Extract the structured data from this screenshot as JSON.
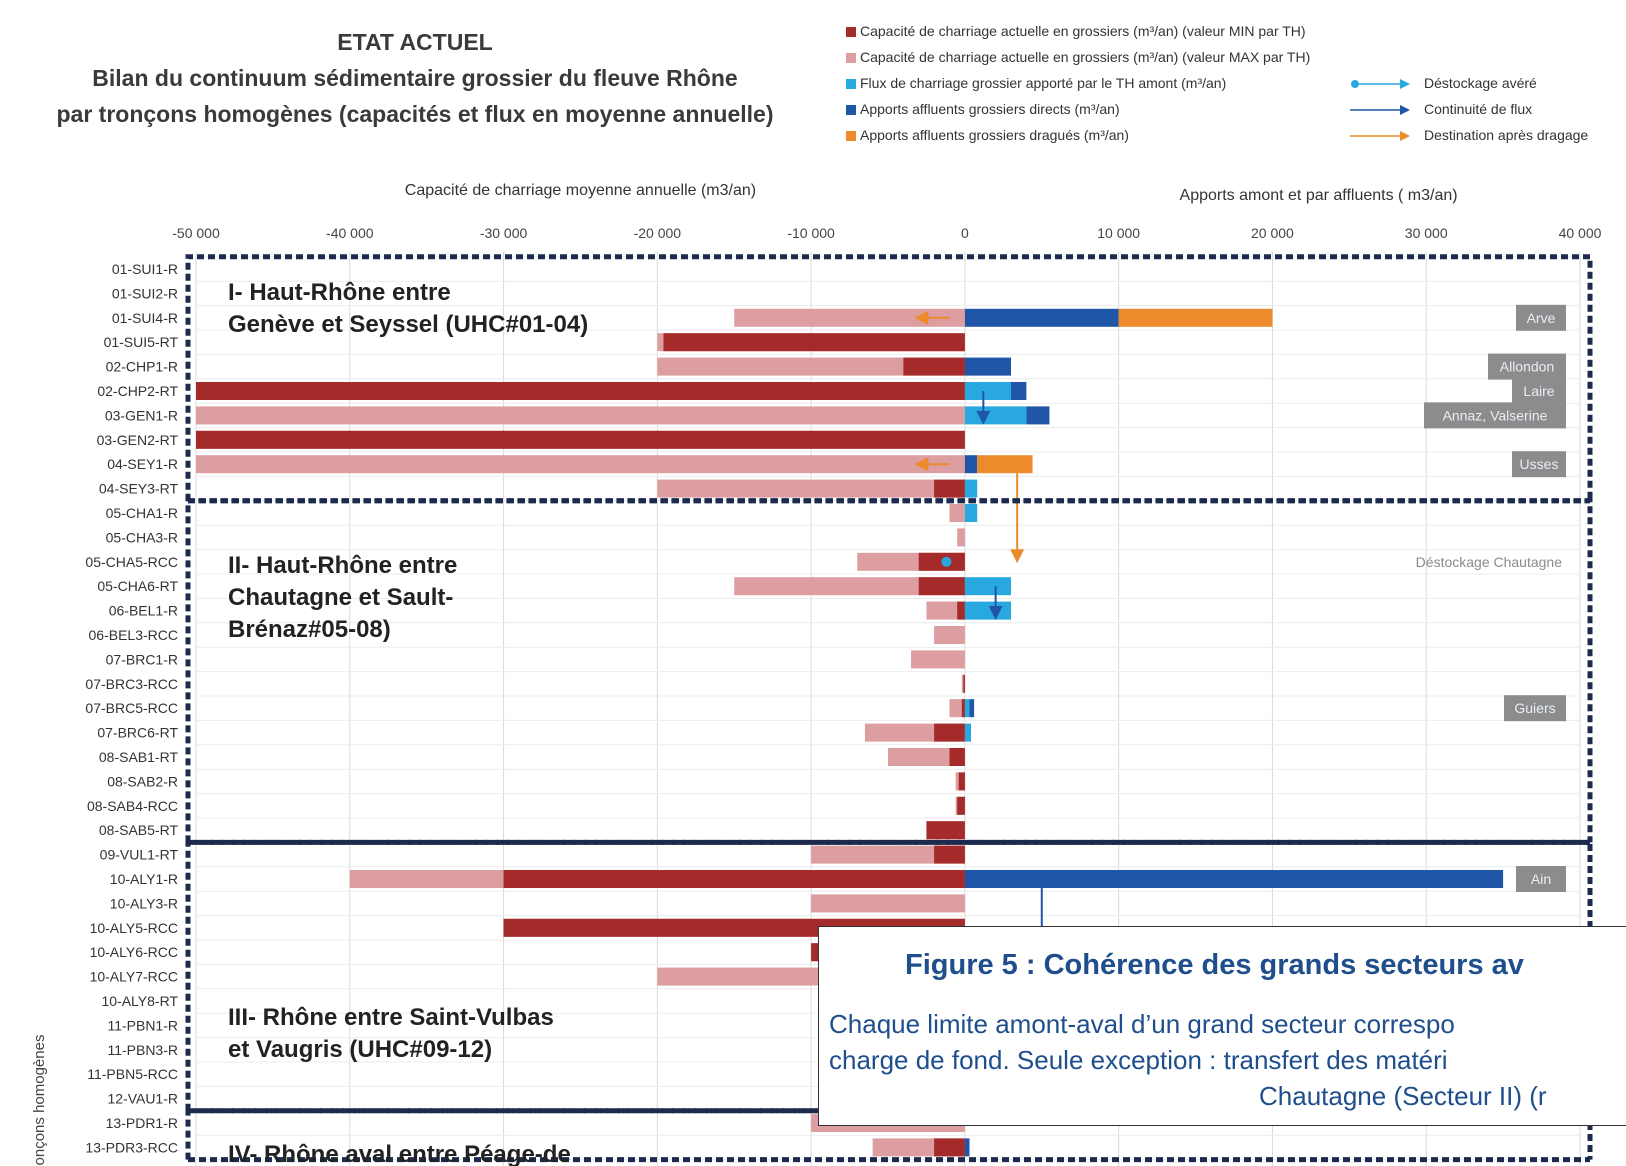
{
  "title": {
    "line0": "ETAT ACTUEL",
    "line1": "Bilan du continuum sédimentaire grossier du fleuve Rhône",
    "line2": "par tronçons homogènes (capacités et flux en moyenne annuelle)"
  },
  "legend": {
    "series": [
      {
        "label": "Capacité de charriage actuelle en grossiers (m³/an) (valeur MIN par TH)",
        "color": "#a52a2a"
      },
      {
        "label": "Capacité de charriage actuelle en grossiers (m³/an) (valeur MAX par TH)",
        "color": "#dc9ea0"
      },
      {
        "label": "Flux de charriage grossier apporté par le TH amont (m³/an)",
        "color": "#29a8e0"
      },
      {
        "label": "Apports affluents grossiers directs (m³/an)",
        "color": "#1f56a8"
      },
      {
        "label": "Apports affluents grossiers dragués (m³/an)",
        "color": "#ed8a2c"
      }
    ],
    "arrows": [
      {
        "label": "Déstockage avéré",
        "color": "#29a8e0"
      },
      {
        "label": "Continuité de flux",
        "color": "#1f56a8"
      },
      {
        "label": "Destination après dragage",
        "color": "#ed8a2c"
      }
    ]
  },
  "chart_data": {
    "type": "bar",
    "orientation": "horizontal",
    "x_label_left": "Capacité de charriage moyenne annuelle (m3/an)",
    "x_label_right": "Apports amont et par affluents ( m3/an)",
    "y_label": "onçons homogènes",
    "xlim": [
      -50000,
      40000
    ],
    "x_ticks": [
      -50000,
      -40000,
      -30000,
      -20000,
      -10000,
      0,
      10000,
      20000,
      30000,
      40000
    ],
    "x_tick_labels": [
      "-50 000",
      "-40 000",
      "-30 000",
      "-20 000",
      "-10 000",
      "0",
      "10 000",
      "20 000",
      "30 000",
      "40 000"
    ],
    "categories": [
      "01-SUI1-R",
      "01-SUI2-R",
      "01-SUI4-R",
      "01-SUI5-RT",
      "02-CHP1-R",
      "02-CHP2-RT",
      "03-GEN1-R",
      "03-GEN2-RT",
      "04-SEY1-R",
      "04-SEY3-RT",
      "05-CHA1-R",
      "05-CHA3-R",
      "05-CHA5-RCC",
      "05-CHA6-RT",
      "06-BEL1-R",
      "06-BEL3-RCC",
      "07-BRC1-R",
      "07-BRC3-RCC",
      "07-BRC5-RCC",
      "07-BRC6-RT",
      "08-SAB1-RT",
      "08-SAB2-R",
      "08-SAB4-RCC",
      "08-SAB5-RT",
      "09-VUL1-RT",
      "10-ALY1-R",
      "10-ALY3-R",
      "10-ALY5-RCC",
      "10-ALY6-RCC",
      "10-ALY7-RCC",
      "10-ALY8-RT",
      "11-PBN1-R",
      "11-PBN3-R",
      "11-PBN5-RCC",
      "12-VAU1-R",
      "13-PDR1-R",
      "13-PDR3-RCC"
    ],
    "series": [
      {
        "name": "Capacité de charriage actuelle en grossiers (m³/an) (valeur MAX par TH)",
        "values": [
          0,
          0,
          -15000,
          -20000,
          -20000,
          -50000,
          -50000,
          -50000,
          -50000,
          -20000,
          -1000,
          -500,
          -7000,
          -15000,
          -2500,
          -2000,
          -3500,
          -200,
          -1000,
          -6500,
          -5000,
          -600,
          -600,
          -2500,
          -10000,
          -40000,
          -10000,
          -30000,
          -10000,
          -20000,
          0,
          0,
          0,
          0,
          0,
          -10000,
          -6000
        ]
      },
      {
        "name": "Capacité de charriage actuelle en grossiers (m³/an) (valeur MIN par TH)",
        "values": [
          0,
          0,
          0,
          -19600,
          -4000,
          -50000,
          0,
          -50000,
          0,
          -2000,
          0,
          0,
          -3000,
          -3000,
          -500,
          0,
          0,
          -100,
          -200,
          -2000,
          -1000,
          -400,
          -500,
          -2500,
          -2000,
          -30000,
          0,
          -30000,
          -10000,
          0,
          0,
          0,
          0,
          0,
          0,
          0,
          -2000
        ]
      },
      {
        "name": "Flux de charriage grossier apporté par le TH amont (m³/an)",
        "values": [
          0,
          0,
          0,
          0,
          0,
          3000,
          4000,
          0,
          0,
          800,
          800,
          0,
          0,
          3000,
          3000,
          0,
          0,
          0,
          300,
          400,
          0,
          0,
          0,
          0,
          0,
          0,
          0,
          0,
          0,
          0,
          0,
          0,
          0,
          0,
          0,
          0,
          0
        ]
      },
      {
        "name": "Apports affluents grossiers directs (m³/an)",
        "values": [
          0,
          0,
          10000,
          0,
          3000,
          1000,
          1500,
          0,
          800,
          0,
          0,
          0,
          0,
          0,
          0,
          0,
          0,
          0,
          300,
          0,
          0,
          0,
          0,
          0,
          0,
          35000,
          0,
          0,
          0,
          0,
          0,
          0,
          0,
          0,
          0,
          0,
          300
        ]
      },
      {
        "name": "Apports affluents grossiers dragués (m³/an)",
        "values": [
          0,
          0,
          10000,
          0,
          0,
          0,
          0,
          0,
          3600,
          0,
          0,
          0,
          0,
          0,
          0,
          0,
          0,
          0,
          0,
          0,
          0,
          0,
          0,
          0,
          0,
          0,
          0,
          0,
          0,
          0,
          0,
          0,
          0,
          0,
          0,
          0,
          0
        ]
      }
    ],
    "tributary_labels": [
      {
        "text": "Arve",
        "row": "01-SUI4-R"
      },
      {
        "text": "Allondon",
        "row": "02-CHP1-R"
      },
      {
        "text": "Laire",
        "row": "02-CHP2-RT"
      },
      {
        "text": "Annaz, Valserine",
        "row": "03-GEN1-R"
      },
      {
        "text": "Usses",
        "row": "04-SEY1-R"
      },
      {
        "text": "Guiers",
        "row": "07-BRC5-RCC"
      },
      {
        "text": "Ain",
        "row": "10-ALY1-R"
      }
    ],
    "annotations": [
      {
        "text": "Déstockage Chautagne",
        "row": "05-CHA5-RCC"
      }
    ],
    "sectors": [
      {
        "label_lines": [
          "I- Haut-Rhône entre",
          "Genève et Seyssel (UHC#01-04)"
        ],
        "from": "01-SUI1-R",
        "to": "04-SEY3-RT"
      },
      {
        "label_lines": [
          "II- Haut-Rhône entre",
          "Chautagne et Sault-",
          "Brénaz#05-08)"
        ],
        "from": "05-CHA1-R",
        "to": "08-SAB5-RT"
      },
      {
        "label_lines": [
          "III- Rhône entre Saint-Vulbas",
          "et Vaugris (UHC#09-12)"
        ],
        "from": "09-VUL1-RT",
        "to": "12-VAU1-R"
      },
      {
        "label_lines": [
          "IV- Rhône aval entre Péage-de"
        ],
        "from": "13-PDR1-R",
        "to": "13-PDR3-RCC"
      }
    ],
    "grid": true
  },
  "figure_caption": {
    "title": "Figure 5 : Cohérence des grands secteurs av",
    "lines": [
      "Chaque limite amont-aval d’un grand secteur correspo",
      "charge de fond. Seule exception : transfert des matéri",
      "Chautagne (Secteur II) (r"
    ]
  }
}
